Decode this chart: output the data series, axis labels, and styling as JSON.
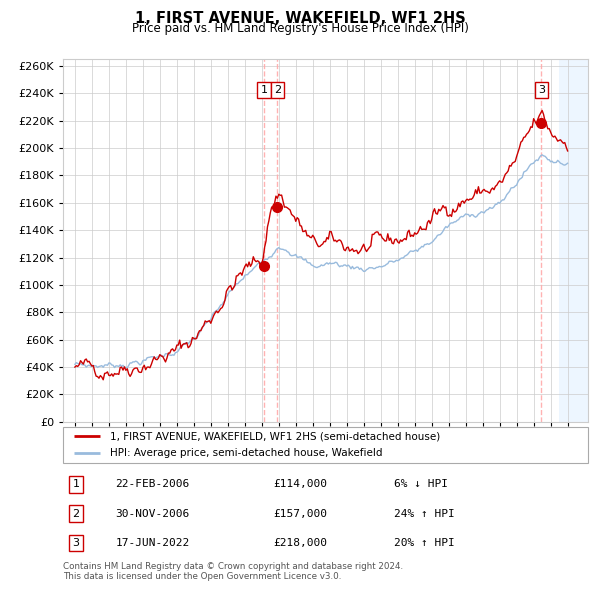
{
  "title": "1, FIRST AVENUE, WAKEFIELD, WF1 2HS",
  "subtitle": "Price paid vs. HM Land Registry's House Price Index (HPI)",
  "property_label": "1, FIRST AVENUE, WAKEFIELD, WF1 2HS (semi-detached house)",
  "hpi_label": "HPI: Average price, semi-detached house, Wakefield",
  "footer1": "Contains HM Land Registry data © Crown copyright and database right 2024.",
  "footer2": "This data is licensed under the Open Government Licence v3.0.",
  "transactions": [
    {
      "num": 1,
      "date": "22-FEB-2006",
      "price": 114000,
      "pct": "6%",
      "dir": "↓",
      "year": 2006.13
    },
    {
      "num": 2,
      "date": "30-NOV-2006",
      "price": 157000,
      "pct": "24%",
      "dir": "↑",
      "year": 2006.92
    },
    {
      "num": 3,
      "date": "17-JUN-2022",
      "price": 218000,
      "pct": "20%",
      "dir": "↑",
      "year": 2022.46
    }
  ],
  "ylim": [
    0,
    265000
  ],
  "yticks": [
    0,
    20000,
    40000,
    60000,
    80000,
    100000,
    120000,
    140000,
    160000,
    180000,
    200000,
    220000,
    240000,
    260000
  ],
  "xlim_left": 1994.3,
  "xlim_right": 2025.2,
  "hatch_start_year": 2023.5,
  "red_color": "#cc0000",
  "blue_color": "#99bbdd",
  "hatch_color": "#ddeeff"
}
